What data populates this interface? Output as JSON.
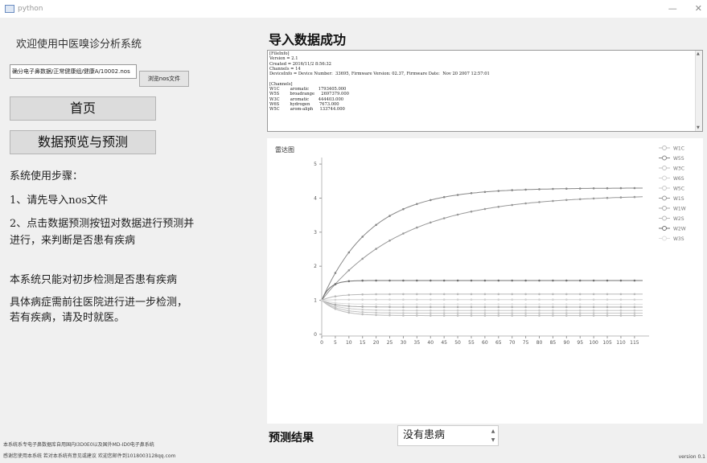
{
  "window": {
    "title": "python",
    "controls": {
      "minimize": "—",
      "close": "✕"
    }
  },
  "left": {
    "welcome": "欢迎使用中医嗅诊分析系统",
    "file_path_value": "确分电子鼻数据/正常健康组/健康A/10002.nos",
    "browse_label": "浏览nos文件",
    "nav": {
      "home": "首页",
      "preview": "数据预览与预测"
    },
    "steps_title": "系统使用步骤：",
    "step1": "1、请先导入nos文件",
    "step2_line1": "2、点击数据预测按钮对数据进行预测并",
    "step2_line2": "进行，来判断是否患有疾病",
    "note1": "本系统只能对初步检测是否患有疾病",
    "note2": "具体病症需前往医院进行进一步检测，",
    "note3": "若有疾病，请及时就医。",
    "footer1": "本系统系专电子鼻数据库自用国内I3D0E0以及国外MD-ID0电子鼻系统",
    "footer2": "感谢您使用本系统 若对本系统有意见或建议 欢迎您邮件到1018003128qq.com"
  },
  "right": {
    "import_title": "导入数据成功",
    "info_lines": [
      "[FileInfo]",
      "Version = 2.1",
      "Created = 2016/11/2 8:56:32",
      "Channels = 14",
      "DeviceInfo = Device Number:  33695, Firmware Version: 02.37, Firmware Date:  Nov 20 2007 12:57:01",
      "",
      "[Channels]",
      "W1C        aromatic       1793405.000",
      "W5S        broadrange     2697379.000",
      "W3C        aromatic       444403.000",
      "W6S        hydrogen       7673.000",
      "W5C        arom-aliph     133744.000"
    ],
    "result_label": "预测结果",
    "result_value": "没有患病",
    "version": "version 0.1"
  },
  "chart_data": {
    "type": "line",
    "title": "雷达图",
    "x_ticks": [
      0,
      5,
      10,
      15,
      20,
      25,
      30,
      35,
      40,
      45,
      50,
      55,
      60,
      65,
      70,
      75,
      80,
      85,
      90,
      95,
      100,
      105,
      110,
      115
    ],
    "y_ticks": [
      0,
      1,
      2,
      3,
      4,
      5
    ],
    "xlim": [
      0,
      118
    ],
    "ylim": [
      -0.05,
      5.05
    ],
    "legend_position": "right",
    "series": [
      {
        "name": "W1C",
        "color": "#bcbcbc",
        "final": 0.55,
        "k": 6
      },
      {
        "name": "W5S",
        "color": "#888888",
        "final": 4.3,
        "k": 18
      },
      {
        "name": "W3C",
        "color": "#c2c2c2",
        "final": 0.62,
        "k": 6
      },
      {
        "name": "W6S",
        "color": "#d0d0d0",
        "final": 1.02,
        "k": 4
      },
      {
        "name": "W5C",
        "color": "#c8c8c8",
        "final": 0.7,
        "k": 6
      },
      {
        "name": "W1S",
        "color": "#999999",
        "final": 4.1,
        "k": 30
      },
      {
        "name": "W1W",
        "color": "#aaaaaa",
        "final": 0.8,
        "k": 5
      },
      {
        "name": "W2S",
        "color": "#b8b8b8",
        "final": 1.18,
        "k": 5
      },
      {
        "name": "W2W",
        "color": "#707070",
        "final": 1.58,
        "k": 3
      },
      {
        "name": "W3S",
        "color": "#dcdcdc",
        "final": 0.88,
        "k": 5
      }
    ]
  }
}
